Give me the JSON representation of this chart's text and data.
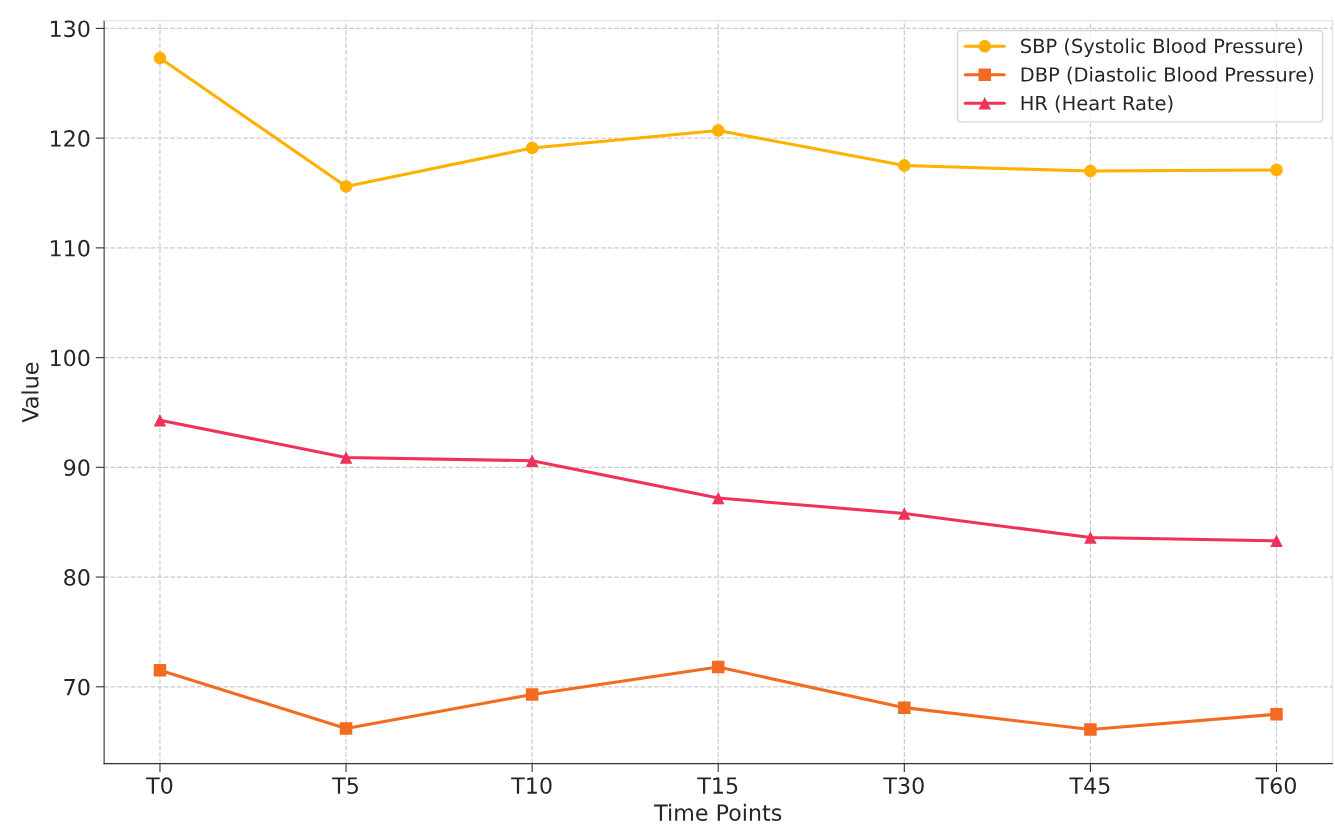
{
  "chart_data": {
    "type": "line",
    "xlabel": "Time Points",
    "ylabel": "Value",
    "categories": [
      "T0",
      "T5",
      "T10",
      "T15",
      "T30",
      "T45",
      "T60"
    ],
    "series": [
      {
        "name": "SBP (Systolic Blood Pressure)",
        "color": "#ffb000",
        "marker": "circle",
        "values": [
          127.3,
          115.6,
          119.1,
          120.7,
          117.5,
          117.0,
          117.1
        ]
      },
      {
        "name": "DBP (Diastolic Blood Pressure)",
        "color": "#f26b21",
        "marker": "square",
        "values": [
          71.5,
          66.2,
          69.3,
          71.8,
          68.1,
          66.1,
          67.5
        ]
      },
      {
        "name": "HR (Heart Rate)",
        "color": "#f0325a",
        "marker": "triangle",
        "values": [
          94.3,
          90.9,
          90.6,
          87.2,
          85.8,
          83.6,
          83.3
        ]
      }
    ],
    "ylim": [
      63,
      130.7
    ],
    "yticks": [
      70,
      80,
      90,
      100,
      110,
      120,
      130
    ],
    "grid": true,
    "legend": "top right",
    "line_style": "solid"
  }
}
